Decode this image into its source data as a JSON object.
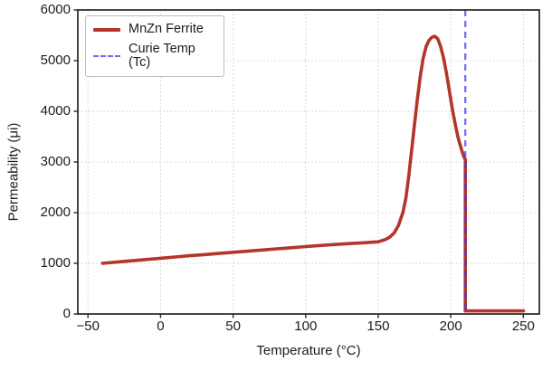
{
  "chart_data": {
    "type": "line",
    "title": "",
    "xlabel": "Temperature (°C)",
    "ylabel": "Permeability (μi)",
    "xlim": [
      -57,
      261
    ],
    "ylim": [
      0,
      6000
    ],
    "xticks": [
      -50,
      0,
      50,
      100,
      150,
      200,
      250
    ],
    "yticks": [
      0,
      1000,
      2000,
      3000,
      4000,
      5000,
      6000
    ],
    "grid": true,
    "grid_style": "dotted",
    "legend_position": "upper left",
    "frame_color": "#262626",
    "grid_color": "#cccccc",
    "series": [
      {
        "name": "MnZn Ferrite",
        "type": "line",
        "color": "#b5352a",
        "line_width": 3.6,
        "points": [
          [
            -40,
            1000
          ],
          [
            -30,
            1025
          ],
          [
            -20,
            1050
          ],
          [
            -10,
            1075
          ],
          [
            0,
            1100
          ],
          [
            10,
            1125
          ],
          [
            20,
            1150
          ],
          [
            30,
            1172
          ],
          [
            40,
            1195
          ],
          [
            50,
            1218
          ],
          [
            60,
            1240
          ],
          [
            70,
            1262
          ],
          [
            80,
            1285
          ],
          [
            90,
            1308
          ],
          [
            100,
            1330
          ],
          [
            110,
            1352
          ],
          [
            120,
            1372
          ],
          [
            130,
            1390
          ],
          [
            140,
            1405
          ],
          [
            150,
            1425
          ],
          [
            155,
            1470
          ],
          [
            158,
            1520
          ],
          [
            161,
            1600
          ],
          [
            164,
            1750
          ],
          [
            167,
            2000
          ],
          [
            169,
            2280
          ],
          [
            171,
            2720
          ],
          [
            173,
            3230
          ],
          [
            175,
            3750
          ],
          [
            177,
            4250
          ],
          [
            179,
            4700
          ],
          [
            181,
            5050
          ],
          [
            183,
            5280
          ],
          [
            185,
            5400
          ],
          [
            187,
            5460
          ],
          [
            189,
            5480
          ],
          [
            191,
            5430
          ],
          [
            193,
            5280
          ],
          [
            195,
            5050
          ],
          [
            197,
            4750
          ],
          [
            199,
            4400
          ],
          [
            201,
            4050
          ],
          [
            203,
            3750
          ],
          [
            205,
            3480
          ],
          [
            207,
            3280
          ],
          [
            209,
            3100
          ],
          [
            210,
            3050
          ],
          [
            210,
            60
          ],
          [
            220,
            60
          ],
          [
            230,
            60
          ],
          [
            240,
            60
          ],
          [
            250,
            60
          ]
        ]
      },
      {
        "name": "Curie Temp (Tc)",
        "type": "vline",
        "x": 210,
        "color": "#3a3ae8",
        "opacity": 0.72,
        "dash": "7 5",
        "line_width": 2.3
      }
    ]
  }
}
